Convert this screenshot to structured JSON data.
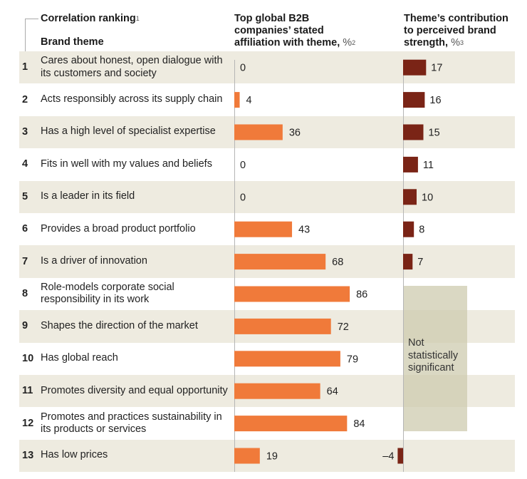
{
  "headers": {
    "ranking": "Correlation ranking",
    "ranking_note": "1",
    "theme": "Brand theme",
    "col1": "Top global B2B companies’ stated affiliation with theme,",
    "col1_unit": "%",
    "col1_note": "2",
    "col2": "Theme’s contribution to perceived brand strength,",
    "col2_unit": "%",
    "col2_note": "3"
  },
  "not_significant_label": "Not statistically significant",
  "colors": {
    "affiliation": "#F07A3A",
    "contribution": "#7A2416",
    "row_shade": "#EEEBE0",
    "not_significant": "#D9D7C2"
  },
  "chart_data": {
    "type": "bar",
    "orientation": "horizontal",
    "categories": [
      "Cares about honest, open dialogue with its customers and society",
      "Acts responsibly across its supply chain",
      "Has a high level of specialist expertise",
      "Fits in well with my values and beliefs",
      "Is a leader in its field",
      "Provides a broad product portfolio",
      "Is a driver of innovation",
      "Role-models corporate social responsibility in its work",
      "Shapes the direction of the market",
      "Has global reach",
      "Promotes diversity and equal opportunity",
      "Promotes and practices sustainability in its products or services",
      "Has low prices"
    ],
    "ranks": [
      "1",
      "2",
      "3",
      "4",
      "5",
      "6",
      "7",
      "8",
      "9",
      "10",
      "11",
      "12",
      "13"
    ],
    "series": [
      {
        "name": "Top global B2B companies’ stated affiliation with theme, %",
        "values": [
          0,
          4,
          36,
          0,
          0,
          43,
          68,
          86,
          72,
          79,
          64,
          84,
          19
        ]
      },
      {
        "name": "Theme’s contribution to perceived brand strength, %",
        "values": [
          17,
          16,
          15,
          11,
          10,
          8,
          7,
          null,
          null,
          null,
          null,
          null,
          -4
        ],
        "value_labels": [
          "17",
          "16",
          "15",
          "11",
          "10",
          "8",
          "7",
          "",
          "",
          "",
          "",
          "",
          "–4"
        ]
      }
    ],
    "not_significant_ranks": [
      8,
      9,
      10,
      11,
      12
    ]
  }
}
